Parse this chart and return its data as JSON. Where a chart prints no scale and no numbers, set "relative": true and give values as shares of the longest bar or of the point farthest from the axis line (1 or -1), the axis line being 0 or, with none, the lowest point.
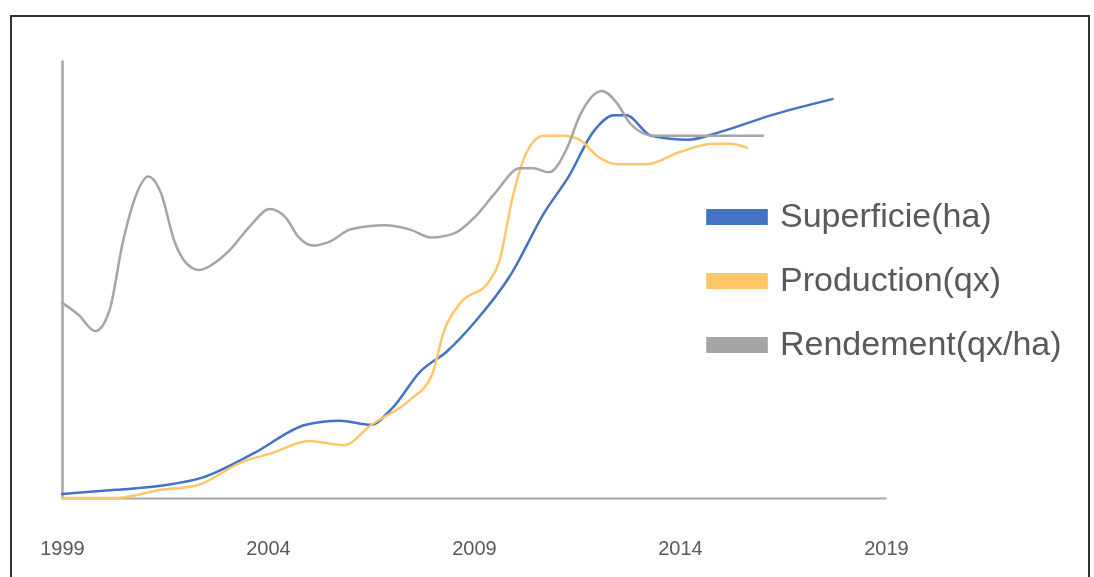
{
  "chart_data": {
    "type": "line",
    "relative": true,
    "xlim": [
      1999,
      2019
    ],
    "xticks": [
      1999,
      2004,
      2009,
      2014,
      2019
    ],
    "legend": "right",
    "series": [
      {
        "name": "Superficie(ha)",
        "color": "#4472c4",
        "x": [
          1999,
          2000.31,
          2001.4,
          2002.4,
          2003.66,
          2004.92,
          2005.75,
          2006.5,
          2007.01,
          2007.69,
          2008.34,
          2009,
          2009.9,
          2010.7,
          2011.3,
          2011.9,
          2012.4,
          2012.7,
          2013.3,
          2014.2,
          2015,
          2016.2,
          2017.7
        ],
        "values": [
          0.01,
          0.02,
          0.03,
          0.05,
          0.11,
          0.18,
          0.19,
          0.18,
          0.22,
          0.31,
          0.36,
          0.43,
          0.55,
          0.7,
          0.79,
          0.9,
          0.94,
          0.94,
          0.89,
          0.88,
          0.9,
          0.94,
          0.98
        ]
      },
      {
        "name": "Production(qx)",
        "color": "#ffc66a",
        "x": [
          1999,
          2000.31,
          2001.4,
          2002.24,
          2003.41,
          2004.08,
          2005,
          2005.84,
          2006.51,
          2007.43,
          2007.97,
          2008.27,
          2008.68,
          2009.35,
          2009.61,
          2009.94,
          2010.28,
          2010.69,
          2011.18,
          2011.57,
          2011.99,
          2012.47,
          2013.2,
          2014,
          2014.8,
          2015.21,
          2015.63
        ],
        "values": [
          0,
          0,
          0.02,
          0.03,
          0.09,
          0.11,
          0.14,
          0.13,
          0.18,
          0.24,
          0.3,
          0.41,
          0.48,
          0.53,
          0.58,
          0.74,
          0.85,
          0.89,
          0.89,
          0.88,
          0.84,
          0.82,
          0.82,
          0.85,
          0.87,
          0.87,
          0.86
        ]
      },
      {
        "name": "Rendement(qx/ha)",
        "color": "#a5a5a5",
        "x": [
          1999,
          1999.4,
          1999.81,
          2000.15,
          2000.48,
          2000.82,
          2001.09,
          2001.4,
          2001.73,
          2001.99,
          2002.33,
          2002.74,
          2003.08,
          2003.58,
          2004.04,
          2004.42,
          2004.75,
          2005.09,
          2005.5,
          2006.01,
          2006.84,
          2007.43,
          2007.97,
          2008.52,
          2009.02,
          2009.52,
          2010.11,
          2010.44,
          2010.82,
          2011.26,
          2011.57,
          2012.11,
          2012.47,
          2012.79,
          2013.35,
          2014.66,
          2016.01
        ],
        "values": [
          0.48,
          0.45,
          0.41,
          0.46,
          0.63,
          0.75,
          0.79,
          0.75,
          0.63,
          0.58,
          0.56,
          0.58,
          0.61,
          0.67,
          0.71,
          0.69,
          0.64,
          0.62,
          0.63,
          0.66,
          0.67,
          0.66,
          0.64,
          0.65,
          0.69,
          0.75,
          0.81,
          0.81,
          0.8,
          0.86,
          0.94,
          1,
          0.97,
          0.92,
          0.89,
          0.89,
          0.89
        ]
      }
    ]
  }
}
